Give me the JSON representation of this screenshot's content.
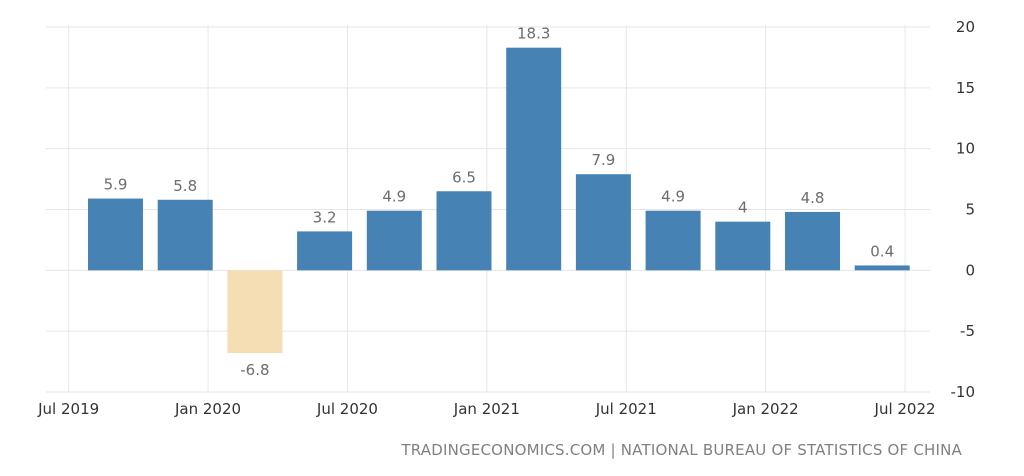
{
  "chart_data": {
    "type": "bar",
    "categories": [
      "Q3 2019",
      "Q4 2019",
      "Q1 2020",
      "Q2 2020",
      "Q3 2020",
      "Q4 2020",
      "Q1 2021",
      "Q2 2021",
      "Q3 2021",
      "Q4 2021",
      "Q1 2022",
      "Q2 2022"
    ],
    "values": [
      5.9,
      5.8,
      -6.8,
      3.2,
      4.9,
      6.5,
      18.3,
      7.9,
      4.9,
      4,
      4.8,
      0.4
    ],
    "value_labels": [
      "5.9",
      "5.8",
      "-6.8",
      "3.2",
      "4.9",
      "6.5",
      "18.3",
      "7.9",
      "4.9",
      "4",
      "4.8",
      "0.4"
    ],
    "x_ticks": [
      "Jul 2019",
      "Jan 2020",
      "Jul 2020",
      "Jan 2021",
      "Jul 2021",
      "Jan 2022",
      "Jul 2022"
    ],
    "y_ticks": [
      "20",
      "15",
      "10",
      "5",
      "0",
      "-5",
      "-10"
    ],
    "ylim": [
      -10,
      20
    ],
    "y_axis_side": "right",
    "grid": true,
    "colors": {
      "positive": "#4682b4",
      "negative": "#f5deb3",
      "grid": "#e6e6e6"
    }
  },
  "footer": {
    "source": "TRADINGECONOMICS.COM | NATIONAL BUREAU OF STATISTICS OF CHINA"
  }
}
